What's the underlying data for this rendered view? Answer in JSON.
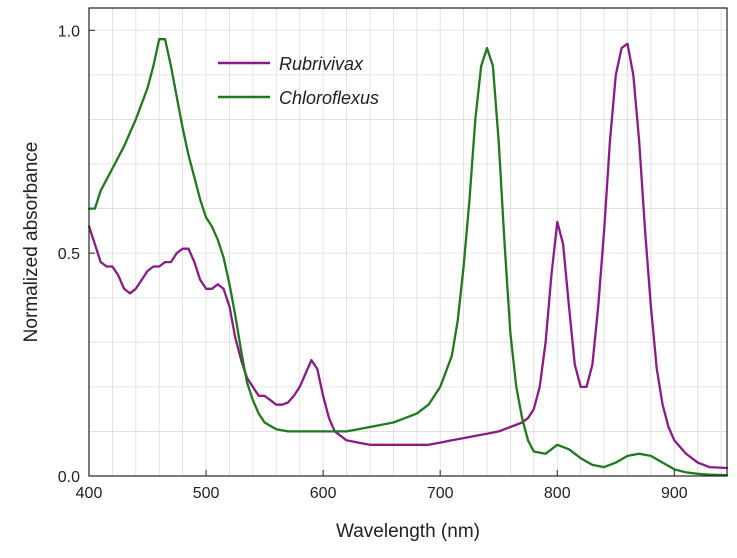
{
  "chart_data": {
    "type": "line",
    "title": "",
    "xlabel": "Wavelength (nm)",
    "ylabel": "Normalized absorbance",
    "xlim": [
      400,
      945
    ],
    "ylim": [
      0,
      1.05
    ],
    "xticks": [
      400,
      500,
      600,
      700,
      800,
      900
    ],
    "xtick_labels": [
      "400",
      "500",
      "600",
      "700",
      "800",
      "900"
    ],
    "yticks": [
      0,
      0.5,
      1
    ],
    "ytick_labels": [
      "0.0",
      "0.5",
      "1.0"
    ],
    "x_minor_step": 20,
    "y_minor_step": 0.1,
    "grid": true,
    "legend_position": "top-center",
    "series": [
      {
        "name": "Rubrivivax",
        "color": "#8b1a8b",
        "x": [
          400,
          405,
          410,
          415,
          420,
          425,
          430,
          435,
          440,
          445,
          450,
          455,
          460,
          465,
          470,
          475,
          480,
          485,
          490,
          495,
          500,
          505,
          510,
          515,
          520,
          525,
          530,
          535,
          540,
          545,
          550,
          555,
          560,
          565,
          570,
          575,
          580,
          585,
          590,
          595,
          600,
          605,
          610,
          620,
          630,
          640,
          650,
          660,
          670,
          680,
          690,
          700,
          710,
          720,
          730,
          740,
          750,
          760,
          770,
          775,
          780,
          785,
          790,
          795,
          800,
          805,
          810,
          815,
          820,
          825,
          830,
          835,
          840,
          845,
          850,
          855,
          860,
          865,
          870,
          875,
          880,
          885,
          890,
          895,
          900,
          910,
          920,
          930,
          945
        ],
        "y": [
          0.56,
          0.52,
          0.48,
          0.47,
          0.47,
          0.45,
          0.42,
          0.41,
          0.42,
          0.44,
          0.46,
          0.47,
          0.47,
          0.48,
          0.48,
          0.5,
          0.51,
          0.51,
          0.48,
          0.44,
          0.42,
          0.42,
          0.43,
          0.42,
          0.38,
          0.31,
          0.26,
          0.22,
          0.2,
          0.18,
          0.18,
          0.17,
          0.16,
          0.16,
          0.165,
          0.18,
          0.2,
          0.23,
          0.26,
          0.24,
          0.18,
          0.13,
          0.1,
          0.08,
          0.075,
          0.07,
          0.07,
          0.07,
          0.07,
          0.07,
          0.07,
          0.075,
          0.08,
          0.085,
          0.09,
          0.095,
          0.1,
          0.11,
          0.12,
          0.13,
          0.15,
          0.2,
          0.3,
          0.45,
          0.57,
          0.52,
          0.38,
          0.25,
          0.2,
          0.2,
          0.25,
          0.38,
          0.55,
          0.75,
          0.9,
          0.96,
          0.97,
          0.9,
          0.75,
          0.55,
          0.38,
          0.24,
          0.16,
          0.11,
          0.08,
          0.05,
          0.03,
          0.02,
          0.018
        ]
      },
      {
        "name": "Chloroflexus",
        "color": "#1f7a1f",
        "x": [
          400,
          405,
          410,
          420,
          430,
          440,
          450,
          455,
          460,
          465,
          470,
          475,
          480,
          485,
          490,
          495,
          500,
          505,
          510,
          515,
          520,
          525,
          530,
          535,
          540,
          545,
          550,
          560,
          570,
          580,
          590,
          600,
          610,
          620,
          630,
          640,
          650,
          660,
          670,
          680,
          690,
          700,
          710,
          715,
          720,
          725,
          730,
          735,
          740,
          745,
          750,
          755,
          760,
          765,
          770,
          775,
          780,
          790,
          800,
          810,
          820,
          830,
          840,
          850,
          860,
          870,
          880,
          890,
          900,
          910,
          920,
          930,
          945
        ],
        "y": [
          0.6,
          0.6,
          0.64,
          0.69,
          0.74,
          0.8,
          0.87,
          0.92,
          0.98,
          0.98,
          0.92,
          0.85,
          0.78,
          0.72,
          0.67,
          0.62,
          0.58,
          0.56,
          0.53,
          0.49,
          0.43,
          0.36,
          0.28,
          0.21,
          0.17,
          0.14,
          0.12,
          0.105,
          0.1,
          0.1,
          0.1,
          0.1,
          0.1,
          0.1,
          0.105,
          0.11,
          0.115,
          0.12,
          0.13,
          0.14,
          0.16,
          0.2,
          0.27,
          0.35,
          0.47,
          0.62,
          0.8,
          0.92,
          0.96,
          0.92,
          0.75,
          0.52,
          0.32,
          0.2,
          0.13,
          0.08,
          0.055,
          0.05,
          0.07,
          0.06,
          0.04,
          0.025,
          0.02,
          0.03,
          0.045,
          0.05,
          0.045,
          0.03,
          0.015,
          0.008,
          0.005,
          0.003,
          0.002
        ]
      }
    ]
  }
}
